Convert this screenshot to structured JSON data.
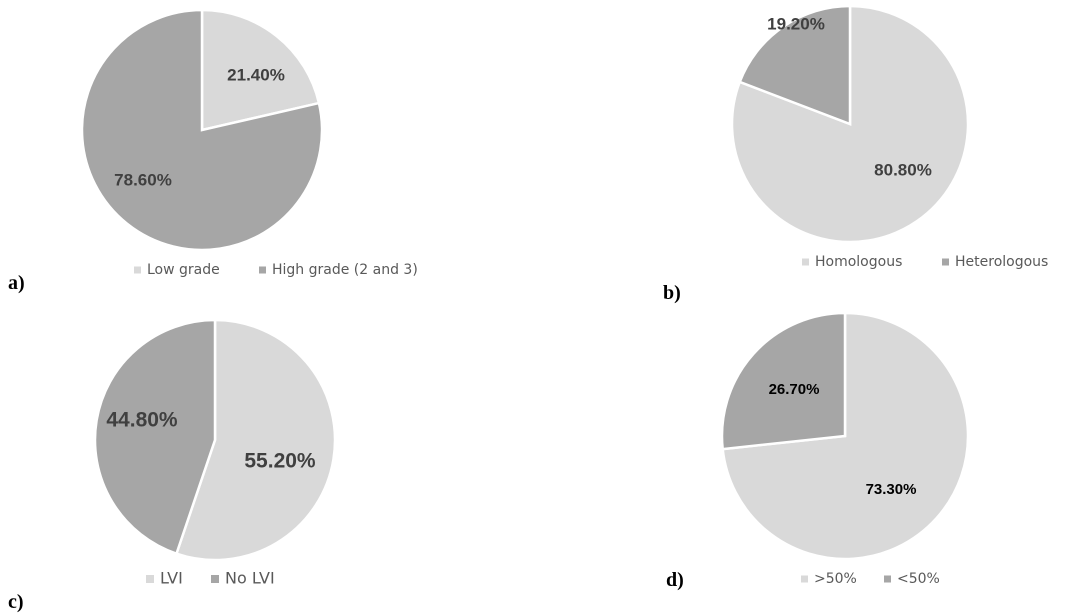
{
  "chart_data": [
    {
      "type": "pie",
      "panel_label": "a)",
      "categories": [
        "Low grade",
        "High grade (2 and 3)"
      ],
      "values": [
        21.4,
        78.6
      ],
      "data_labels": [
        "21.40%",
        "78.60%"
      ],
      "colors": [
        "#d9d9d9",
        "#a6a6a6"
      ],
      "legend": [
        "Low grade",
        "High grade (2 and 3)"
      ],
      "legend_position": "bottom"
    },
    {
      "type": "pie",
      "panel_label": "b)",
      "categories": [
        "Homologous",
        "Heterologous"
      ],
      "values": [
        80.8,
        19.2
      ],
      "data_labels": [
        "80.80%",
        "19.20%"
      ],
      "colors": [
        "#d9d9d9",
        "#a6a6a6"
      ],
      "legend": [
        "Homologous",
        "Heterologous"
      ],
      "legend_position": "bottom"
    },
    {
      "type": "pie",
      "panel_label": "c)",
      "categories": [
        "LVI",
        "No LVI"
      ],
      "values": [
        55.2,
        44.8
      ],
      "data_labels": [
        "55.20%",
        "44.80%"
      ],
      "colors": [
        "#d9d9d9",
        "#a6a6a6"
      ],
      "legend": [
        "LVI",
        "No LVI"
      ],
      "legend_position": "bottom"
    },
    {
      "type": "pie",
      "panel_label": "d)",
      "categories": [
        ">50%",
        "<50%"
      ],
      "values": [
        73.3,
        26.7
      ],
      "data_labels": [
        "73.30%",
        "26.70%"
      ],
      "colors": [
        "#d9d9d9",
        "#a6a6a6"
      ],
      "legend": [
        ">50%",
        "<50%"
      ],
      "legend_position": "bottom"
    }
  ]
}
